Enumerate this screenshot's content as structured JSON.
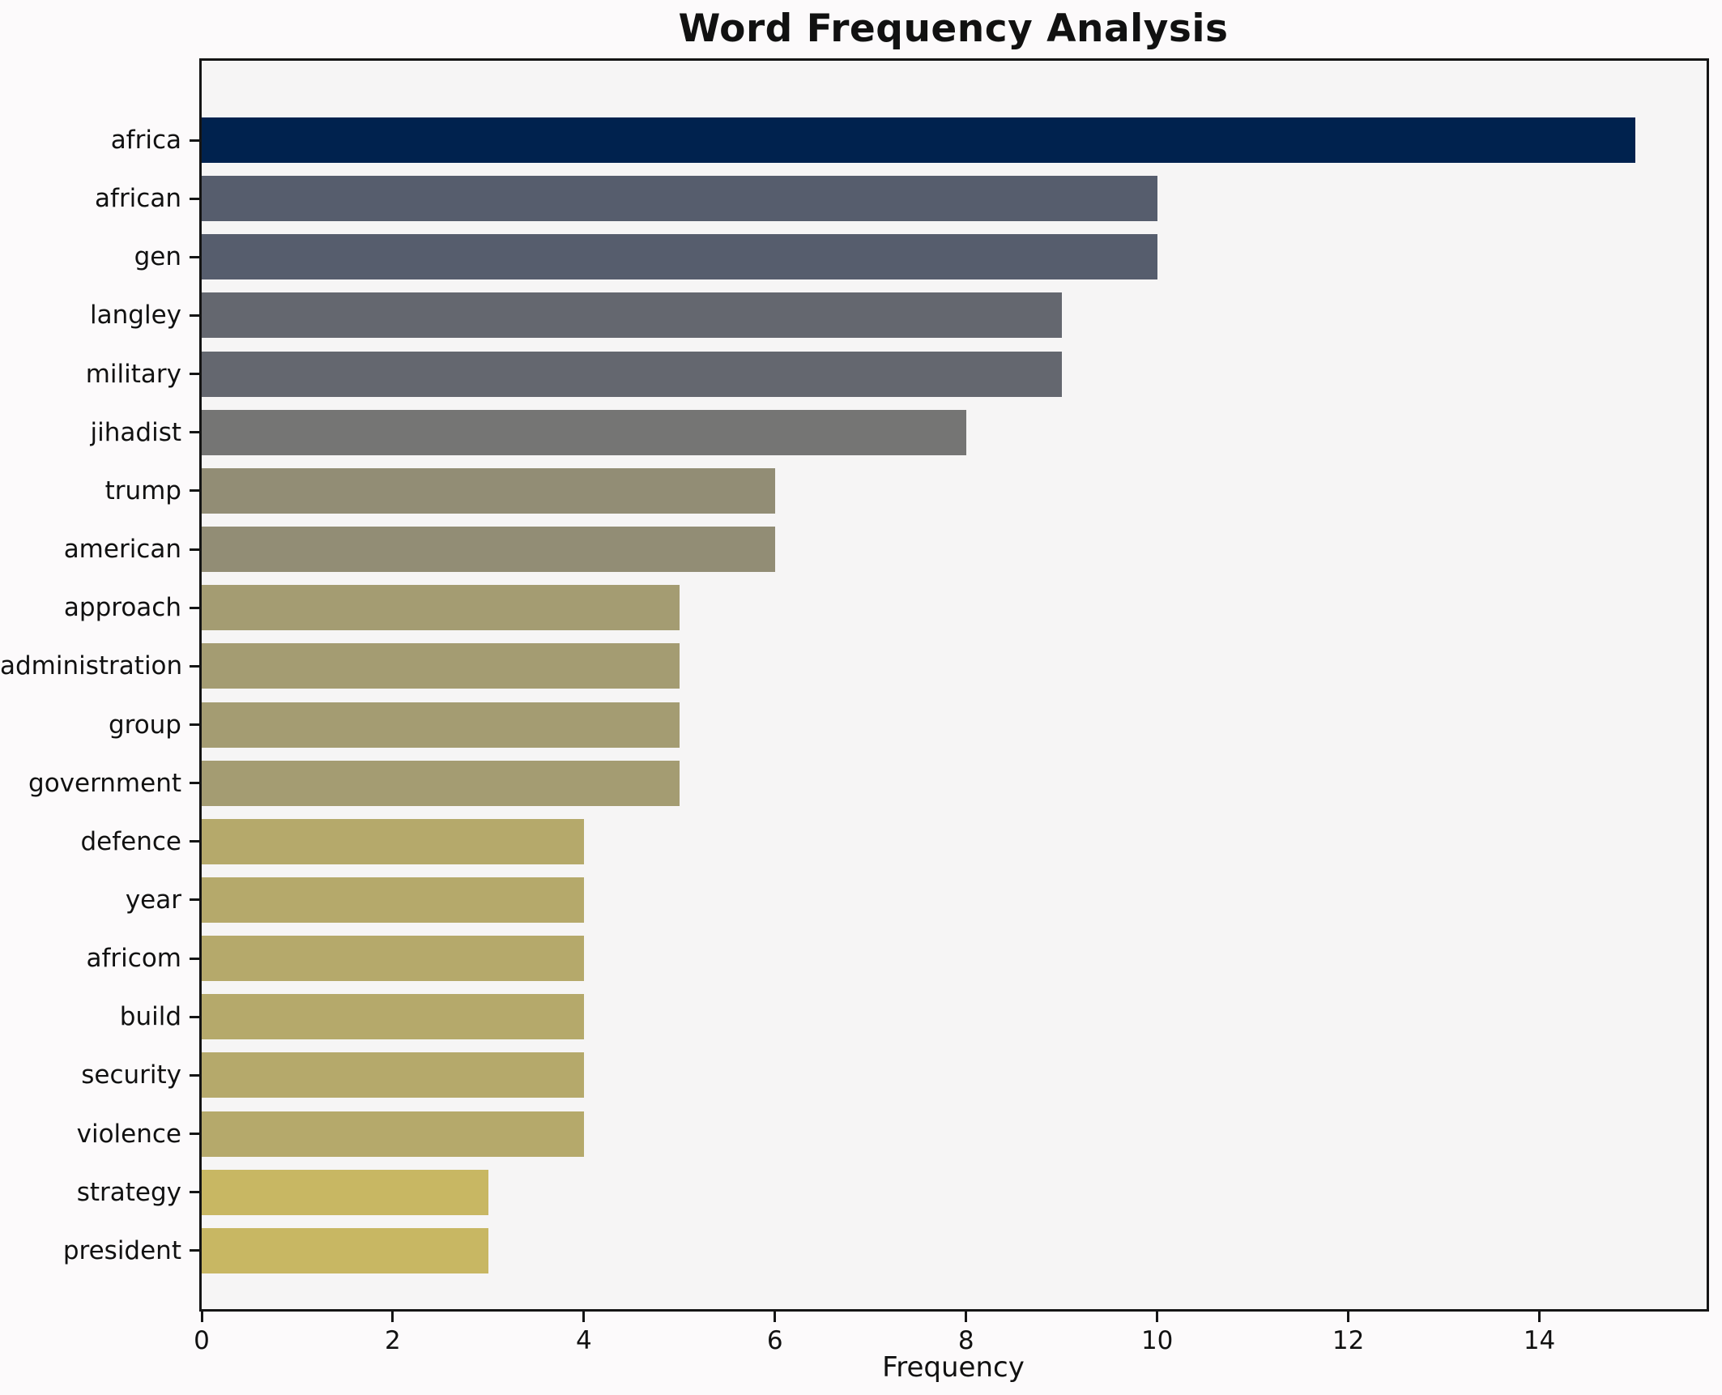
{
  "chart_data": {
    "type": "bar",
    "orientation": "horizontal",
    "title": "Word Frequency Analysis",
    "xlabel": "Frequency",
    "ylabel": "",
    "xlim": [
      0,
      15.75
    ],
    "xticks": [
      0,
      2,
      4,
      6,
      8,
      10,
      12,
      14
    ],
    "grid": false,
    "legend": "none",
    "categories": [
      "africa",
      "african",
      "gen",
      "langley",
      "military",
      "jihadist",
      "trump",
      "american",
      "approach",
      "administration",
      "group",
      "government",
      "defence",
      "year",
      "africom",
      "build",
      "security",
      "violence",
      "strategy",
      "president"
    ],
    "values": [
      15,
      10,
      10,
      9,
      9,
      8,
      6,
      6,
      5,
      5,
      5,
      5,
      4,
      4,
      4,
      4,
      4,
      4,
      3,
      3
    ],
    "bar_colors": [
      "#00224e",
      "#565d6d",
      "#565d6d",
      "#64676f",
      "#64676f",
      "#757574",
      "#928d75",
      "#928d75",
      "#a49c72",
      "#a49c72",
      "#a49c72",
      "#a49c72",
      "#b5a96b",
      "#b5a96b",
      "#b5a96b",
      "#b5a96b",
      "#b5a96b",
      "#b5a96b",
      "#c8b763",
      "#c8b763"
    ],
    "plot_background": "#f6f5f5",
    "figure_background": "#fcfafb",
    "spine_color": "#151515"
  }
}
